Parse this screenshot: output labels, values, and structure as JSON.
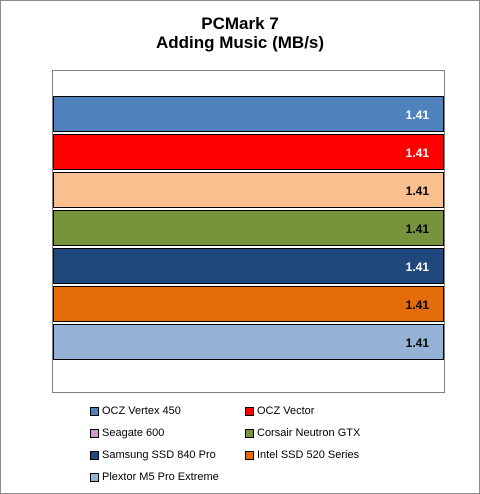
{
  "chart_data": {
    "type": "bar",
    "orientation": "horizontal",
    "title": [
      "PCMark 7",
      "Adding Music (MB/s)"
    ],
    "xlabel": "",
    "ylabel": "",
    "xlim": [
      0,
      1.41
    ],
    "grid": false,
    "legend_position": "bottom",
    "series": [
      {
        "name": "OCZ Vertex 450",
        "value": 1.41,
        "label": "1.41",
        "color": "#4f81bd",
        "label_color": "#ffffff"
      },
      {
        "name": "OCZ Vector",
        "value": 1.41,
        "label": "1.41",
        "color": "#ff0000",
        "label_color": "#ffffff"
      },
      {
        "name": "Seagate 600",
        "value": 1.41,
        "label": "1.41",
        "color": "#fac090",
        "label_color": "#000000"
      },
      {
        "name": "Corsair Neutron GTX",
        "value": 1.41,
        "label": "1.41",
        "color": "#77933c",
        "label_color": "#000000"
      },
      {
        "name": "Samsung SSD 840 Pro",
        "value": 1.41,
        "label": "1.41",
        "color": "#1f497d",
        "label_color": "#ffffff"
      },
      {
        "name": "Intel SSD 520 Series",
        "value": 1.41,
        "label": "1.41",
        "color": "#e46c0a",
        "label_color": "#000000"
      },
      {
        "name": "Plextor M5 Pro Extreme",
        "value": 1.41,
        "label": "1.41",
        "color": "#95b3d7",
        "label_color": "#000000"
      }
    ],
    "legend": [
      {
        "name": "OCZ Vertex 450",
        "color": "#4f81bd"
      },
      {
        "name": "OCZ Vector",
        "color": "#ff0000"
      },
      {
        "name": "Seagate 600",
        "color": "#cc99cc"
      },
      {
        "name": "Corsair Neutron GTX",
        "color": "#77933c"
      },
      {
        "name": "Samsung SSD 840 Pro",
        "color": "#1f497d"
      },
      {
        "name": "Intel SSD 520 Series",
        "color": "#e46c0a"
      },
      {
        "name": "Plextor M5 Pro Extreme",
        "color": "#95b3d7"
      }
    ]
  }
}
